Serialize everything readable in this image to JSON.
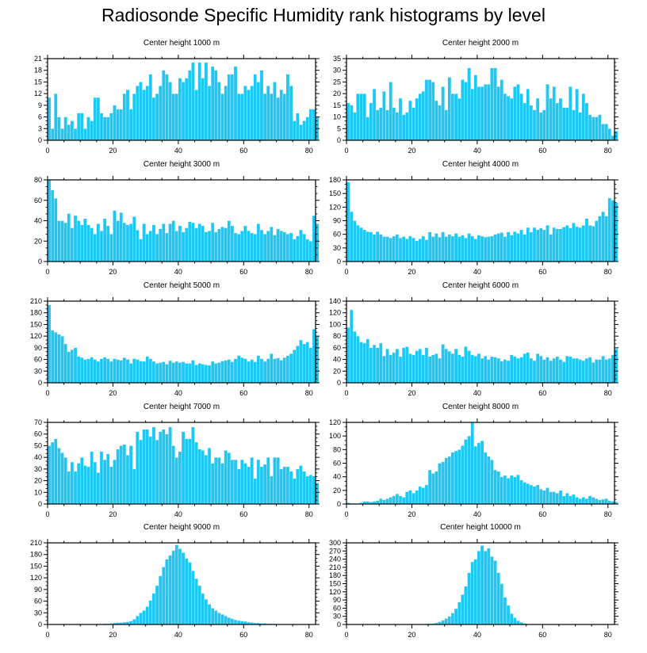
{
  "title": "Radiosonde Specific Humidity rank histograms by level",
  "colors": {
    "bar": "#1ec8f5",
    "bar_edge": "#ffffff",
    "axis": "#000000"
  },
  "chart_data": [
    {
      "type": "bar",
      "title": "Center height 1000 m",
      "x_start": 0,
      "xlim": [
        0,
        82
      ],
      "xticks": [
        0,
        20,
        40,
        60,
        80
      ],
      "ylim": [
        0,
        21
      ],
      "yticks": [
        0,
        3,
        6,
        9,
        12,
        15,
        18,
        21
      ],
      "values": [
        11,
        3,
        12,
        6,
        3,
        6,
        4,
        5,
        3,
        7,
        7,
        3,
        6,
        5,
        11,
        11,
        7,
        6,
        6,
        7,
        9,
        8,
        8,
        12,
        13,
        8,
        12,
        14,
        15,
        13,
        14,
        17,
        11,
        12,
        14,
        18,
        17,
        15,
        12,
        12,
        16,
        15,
        16,
        18,
        20,
        13,
        20,
        16,
        20,
        14,
        19,
        18,
        15,
        12,
        14,
        17,
        17,
        19,
        12,
        12,
        14,
        13,
        14,
        17,
        15,
        18,
        12,
        14,
        12,
        15,
        11,
        13,
        12,
        17,
        14,
        5,
        7,
        4,
        5,
        6,
        8,
        8,
        6
      ]
    },
    {
      "type": "bar",
      "title": "Center height 2000 m",
      "x_start": 0,
      "xlim": [
        0,
        82
      ],
      "xticks": [
        0,
        20,
        40,
        60,
        80
      ],
      "ylim": [
        0,
        35
      ],
      "yticks": [
        0,
        5,
        10,
        15,
        20,
        25,
        30,
        35
      ],
      "values": [
        16,
        15,
        12,
        20,
        20,
        20,
        10,
        16,
        22,
        13,
        14,
        21,
        13,
        25,
        14,
        12,
        18,
        11,
        12,
        17,
        14,
        18,
        20,
        21,
        26,
        26,
        25,
        17,
        15,
        23,
        13,
        27,
        20,
        20,
        18,
        26,
        25,
        31,
        22,
        28,
        23,
        23,
        24,
        24,
        31,
        31,
        23,
        26,
        20,
        19,
        18,
        23,
        24,
        20,
        16,
        22,
        15,
        13,
        18,
        12,
        13,
        24,
        18,
        23,
        16,
        18,
        14,
        14,
        23,
        13,
        22,
        12,
        20,
        16,
        11,
        10,
        10,
        11,
        7,
        7,
        5,
        2,
        4
      ]
    },
    {
      "type": "bar",
      "title": "Center height 3000 m",
      "x_start": 0,
      "xlim": [
        0,
        82
      ],
      "xticks": [
        0,
        20,
        40,
        60,
        80
      ],
      "ylim": [
        0,
        80
      ],
      "yticks": [
        0,
        20,
        40,
        60,
        80
      ],
      "values": [
        80,
        70,
        62,
        40,
        40,
        38,
        47,
        33,
        45,
        40,
        36,
        42,
        36,
        33,
        27,
        37,
        30,
        42,
        35,
        27,
        50,
        40,
        48,
        38,
        36,
        37,
        44,
        31,
        22,
        37,
        27,
        30,
        36,
        27,
        32,
        37,
        28,
        37,
        40,
        30,
        35,
        29,
        33,
        39,
        38,
        33,
        37,
        35,
        29,
        30,
        38,
        29,
        32,
        34,
        33,
        40,
        35,
        28,
        27,
        30,
        35,
        30,
        28,
        27,
        37,
        31,
        27,
        30,
        34,
        26,
        32,
        30,
        29,
        27,
        28,
        22,
        25,
        31,
        27,
        22,
        20,
        45,
        37
      ]
    },
    {
      "type": "bar",
      "title": "Center height 4000 m",
      "x_start": 0,
      "xlim": [
        0,
        82
      ],
      "xticks": [
        0,
        20,
        40,
        60,
        80
      ],
      "ylim": [
        0,
        180
      ],
      "yticks": [
        0,
        30,
        60,
        90,
        120,
        150,
        180
      ],
      "values": [
        175,
        110,
        90,
        80,
        75,
        70,
        66,
        65,
        60,
        66,
        60,
        55,
        55,
        52,
        56,
        60,
        52,
        55,
        50,
        56,
        52,
        46,
        50,
        56,
        48,
        65,
        55,
        62,
        54,
        65,
        55,
        60,
        56,
        62,
        55,
        58,
        52,
        62,
        56,
        50,
        58,
        56,
        54,
        55,
        56,
        60,
        62,
        64,
        55,
        65,
        58,
        66,
        62,
        70,
        60,
        75,
        65,
        75,
        70,
        74,
        70,
        80,
        60,
        75,
        72,
        72,
        76,
        80,
        74,
        85,
        77,
        75,
        80,
        95,
        80,
        78,
        90,
        100,
        110,
        100,
        140,
        135,
        130
      ]
    },
    {
      "type": "bar",
      "title": "Center height 5000 m",
      "x_start": 0,
      "xlim": [
        0,
        82
      ],
      "xticks": [
        0,
        20,
        40,
        60,
        80
      ],
      "ylim": [
        0,
        210
      ],
      "yticks": [
        0,
        30,
        60,
        90,
        120,
        150,
        180,
        210
      ],
      "values": [
        200,
        135,
        130,
        125,
        120,
        100,
        80,
        85,
        90,
        68,
        65,
        60,
        62,
        66,
        60,
        55,
        62,
        66,
        62,
        55,
        62,
        60,
        58,
        65,
        60,
        50,
        62,
        60,
        56,
        55,
        68,
        62,
        55,
        50,
        52,
        54,
        48,
        57,
        52,
        55,
        52,
        54,
        50,
        50,
        58,
        46,
        50,
        48,
        46,
        45,
        55,
        50,
        52,
        56,
        58,
        60,
        54,
        62,
        70,
        65,
        62,
        55,
        60,
        54,
        70,
        62,
        55,
        62,
        75,
        62,
        64,
        58,
        65,
        70,
        75,
        85,
        95,
        110,
        100,
        105,
        90,
        138,
        120
      ]
    },
    {
      "type": "bar",
      "title": "Center height 6000 m",
      "x_start": 0,
      "xlim": [
        0,
        82
      ],
      "xticks": [
        0,
        20,
        40,
        60,
        80
      ],
      "ylim": [
        0,
        140
      ],
      "yticks": [
        0,
        20,
        40,
        60,
        80,
        100,
        120,
        140
      ],
      "values": [
        95,
        125,
        88,
        80,
        70,
        68,
        75,
        60,
        65,
        60,
        68,
        46,
        58,
        48,
        52,
        58,
        45,
        60,
        62,
        50,
        48,
        55,
        58,
        48,
        60,
        45,
        48,
        50,
        42,
        66,
        58,
        54,
        50,
        58,
        48,
        45,
        62,
        55,
        48,
        46,
        50,
        42,
        46,
        40,
        45,
        44,
        42,
        37,
        40,
        38,
        48,
        45,
        42,
        44,
        50,
        52,
        42,
        38,
        50,
        46,
        40,
        44,
        38,
        42,
        45,
        40,
        36,
        46,
        45,
        42,
        42,
        40,
        38,
        42,
        44,
        35,
        40,
        40,
        46,
        40,
        42,
        48,
        58
      ]
    },
    {
      "type": "bar",
      "title": "Center height 7000 m",
      "x_start": 0,
      "xlim": [
        0,
        82
      ],
      "xticks": [
        0,
        20,
        40,
        60,
        80
      ],
      "ylim": [
        0,
        70
      ],
      "yticks": [
        0,
        10,
        20,
        30,
        40,
        50,
        60,
        70
      ],
      "values": [
        50,
        53,
        56,
        48,
        44,
        40,
        28,
        36,
        28,
        35,
        40,
        33,
        32,
        45,
        36,
        27,
        45,
        38,
        43,
        32,
        38,
        47,
        50,
        51,
        42,
        50,
        30,
        62,
        55,
        64,
        64,
        58,
        66,
        55,
        62,
        64,
        60,
        66,
        50,
        40,
        45,
        62,
        56,
        56,
        66,
        53,
        47,
        46,
        42,
        48,
        35,
        40,
        40,
        35,
        46,
        44,
        38,
        38,
        30,
        38,
        35,
        32,
        40,
        22,
        38,
        32,
        34,
        40,
        24,
        40,
        40,
        30,
        32,
        32,
        28,
        22,
        30,
        33,
        28,
        24,
        25,
        24,
        18
      ]
    },
    {
      "type": "bar",
      "title": "Center height 8000 m",
      "x_start": 0,
      "xlim": [
        0,
        82
      ],
      "xticks": [
        0,
        20,
        40,
        60,
        80
      ],
      "ylim": [
        0,
        120
      ],
      "yticks": [
        0,
        20,
        40,
        60,
        80,
        100,
        120
      ],
      "values": [
        2,
        1,
        1,
        1,
        2,
        4,
        4,
        3,
        4,
        5,
        8,
        6,
        8,
        10,
        12,
        15,
        12,
        10,
        18,
        20,
        16,
        20,
        26,
        24,
        28,
        50,
        45,
        48,
        60,
        62,
        68,
        70,
        76,
        78,
        80,
        86,
        95,
        100,
        120,
        85,
        90,
        93,
        76,
        70,
        65,
        50,
        48,
        40,
        42,
        38,
        42,
        40,
        43,
        35,
        32,
        30,
        28,
        26,
        28,
        22,
        20,
        24,
        18,
        18,
        16,
        20,
        12,
        16,
        12,
        14,
        10,
        8,
        10,
        8,
        12,
        10,
        8,
        6,
        7,
        8,
        5,
        4,
        3
      ]
    },
    {
      "type": "bar",
      "title": "Center height 9000 m",
      "x_start": 1,
      "xlim": [
        0,
        82
      ],
      "xticks": [
        0,
        20,
        40,
        60,
        80
      ],
      "ylim": [
        0,
        210
      ],
      "yticks": [
        0,
        30,
        60,
        90,
        120,
        150,
        180,
        210
      ],
      "values": [
        0,
        0,
        0,
        0,
        0,
        0,
        0,
        0,
        0,
        0,
        0,
        0,
        0,
        1,
        1,
        1,
        2,
        2,
        3,
        4,
        5,
        5,
        6,
        7,
        9,
        14,
        22,
        30,
        36,
        46,
        62,
        80,
        100,
        125,
        148,
        168,
        178,
        190,
        205,
        195,
        185,
        170,
        160,
        138,
        118,
        100,
        80,
        65,
        52,
        42,
        36,
        30,
        26,
        22,
        18,
        15,
        12,
        10,
        9,
        8,
        6,
        5,
        4,
        4,
        3,
        3,
        2,
        2,
        2,
        1,
        1,
        1,
        1,
        1,
        1,
        0,
        0,
        0,
        0,
        0,
        0
      ]
    },
    {
      "type": "bar",
      "title": "Center height 10000 m",
      "x_start": 1,
      "xlim": [
        0,
        82
      ],
      "xticks": [
        0,
        20,
        40,
        60,
        80
      ],
      "ylim": [
        0,
        300
      ],
      "yticks": [
        0,
        30,
        60,
        90,
        120,
        150,
        180,
        210,
        240,
        270,
        300
      ],
      "values": [
        0,
        0,
        0,
        0,
        0,
        0,
        0,
        0,
        0,
        0,
        0,
        0,
        0,
        0,
        0,
        0,
        0,
        0,
        0,
        0,
        0,
        1,
        1,
        2,
        3,
        4,
        6,
        10,
        15,
        22,
        30,
        42,
        58,
        82,
        110,
        140,
        190,
        230,
        240,
        270,
        290,
        270,
        280,
        250,
        235,
        190,
        150,
        100,
        70,
        40,
        25,
        14,
        8,
        4,
        2,
        1,
        1,
        0,
        0,
        0,
        0,
        0,
        0,
        0,
        0,
        0,
        0,
        0,
        0,
        0,
        0,
        0,
        0,
        0,
        0,
        0,
        0,
        0,
        0,
        0,
        0
      ]
    }
  ]
}
